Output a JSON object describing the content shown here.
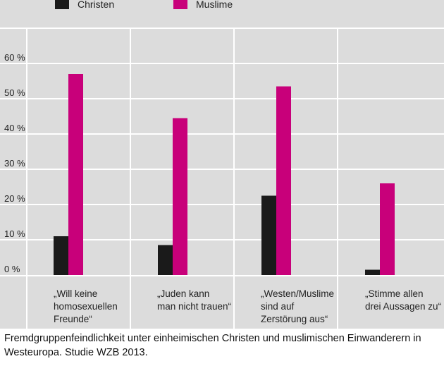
{
  "chart_data": {
    "type": "bar",
    "categories": [
      "„Will keine\nhomosexuellen\nFreunde“",
      "„Juden kann\nman nicht trauen“",
      "„Westen/Muslime\nsind auf\nZerstörung aus“",
      "„Stimme allen\ndrei Aussagen zu“"
    ],
    "series": [
      {
        "name": "Christen",
        "values": [
          11,
          8.5,
          22.5,
          1.5
        ]
      },
      {
        "name": "Muslime",
        "values": [
          57,
          44.5,
          53.5,
          26
        ]
      }
    ],
    "yticks": [
      "0 %",
      "10 %",
      "20 %",
      "30 %",
      "40 %",
      "50 %",
      "60 %"
    ],
    "ylim": [
      0,
      70
    ],
    "grid": true,
    "legend": "top-left"
  },
  "colors": {
    "christen": "#1a1a1a",
    "muslime": "#c8007a",
    "panel": "#dcdcdc",
    "grid": "#ffffff"
  },
  "caption": "Fremdgruppenfeindlichkeit unter einheimischen Christen und muslimischen Einwanderern in Westeuropa. Studie WZB 2013."
}
